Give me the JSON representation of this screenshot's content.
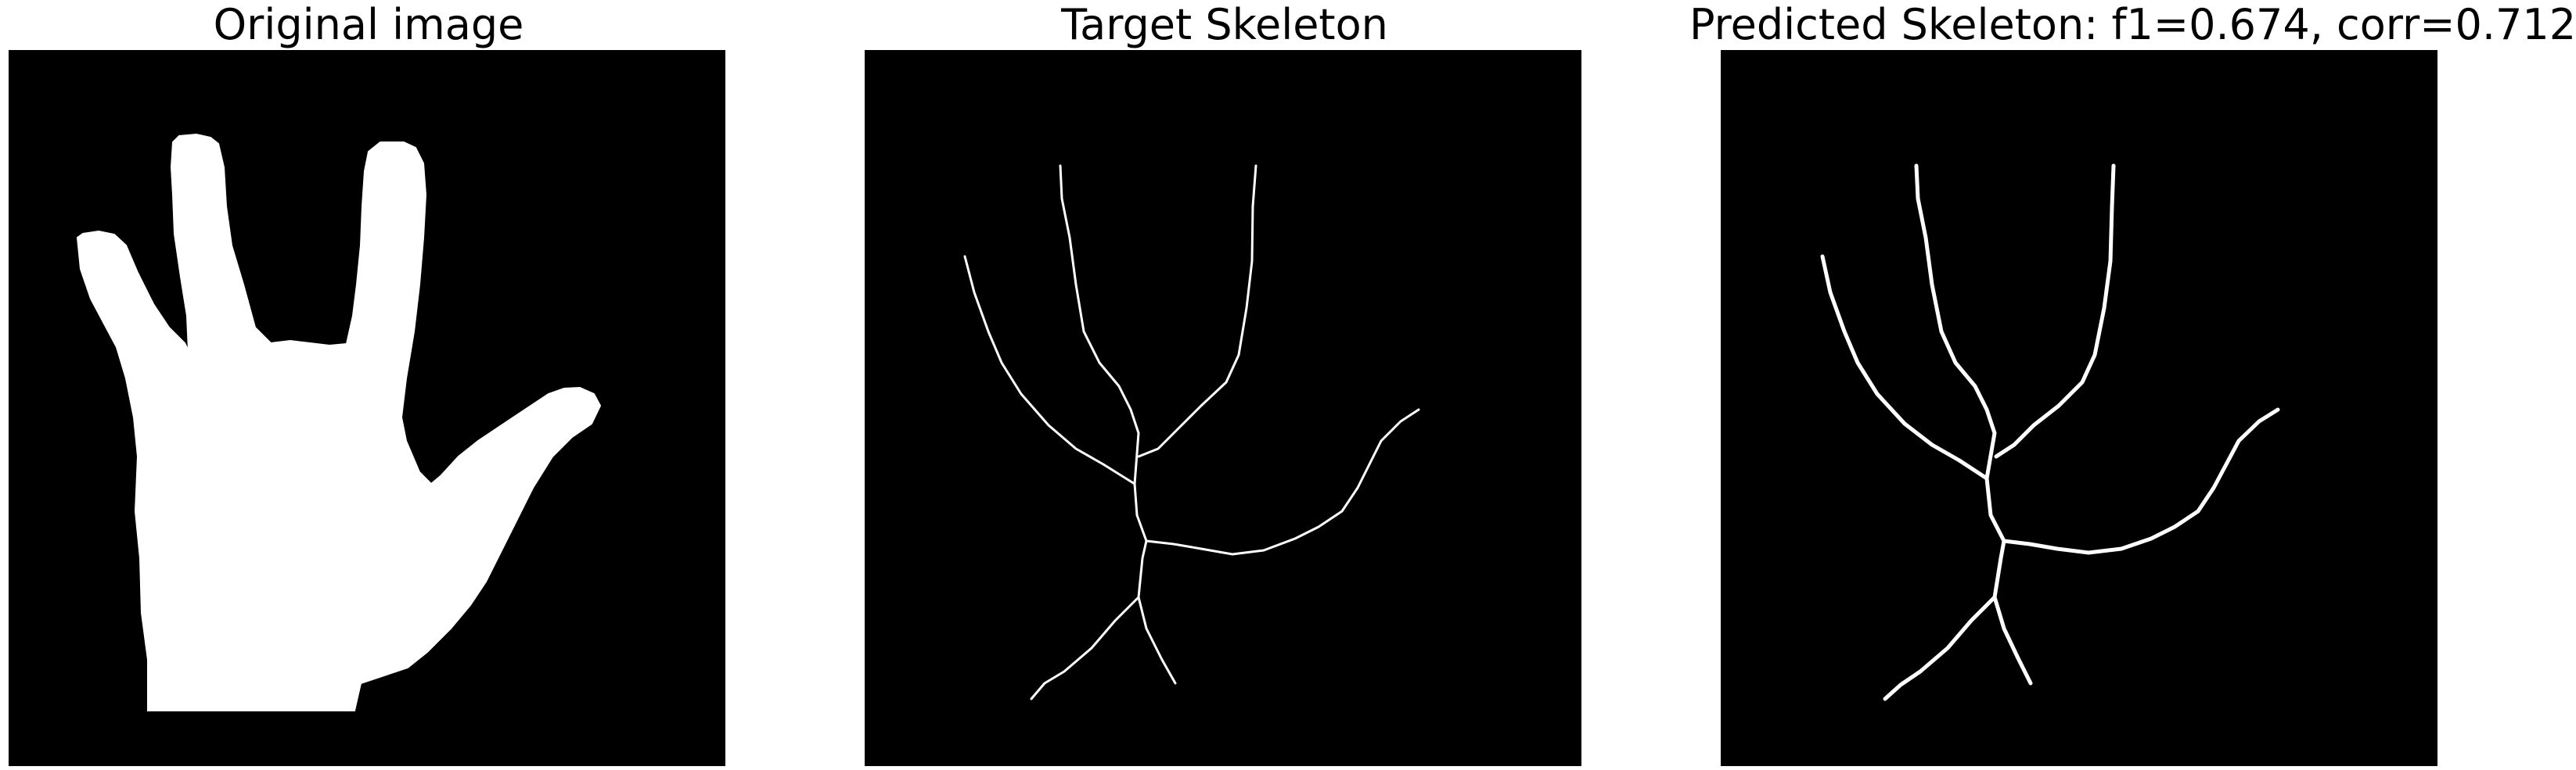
{
  "panels": [
    {
      "title": "Original image"
    },
    {
      "title": "Target Skeleton"
    },
    {
      "title": "Predicted Skeleton: f1=0.674, corr=0.712"
    }
  ],
  "colors": {
    "background": "#000000",
    "foreground": "#ffffff",
    "page": "#ffffff"
  }
}
